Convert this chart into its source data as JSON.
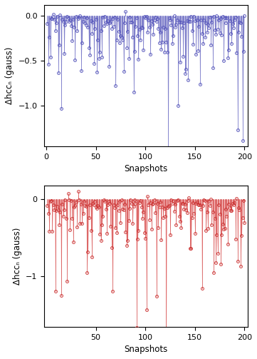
{
  "n": 200,
  "blue_color": "#5555bb",
  "blue_fill": "#8888cc",
  "red_color": "#cc3333",
  "red_fill": "#ee7777",
  "ylabel_blue": "Δhccₙ (gauss)",
  "ylabel_red": "Δhccₙ (gauss)",
  "xlabel": "Snapshots",
  "blue_ylim": [
    -1.45,
    0.12
  ],
  "red_ylim": [
    -1.65,
    0.18
  ],
  "blue_yticks": [
    0,
    -0.5,
    -1.0
  ],
  "red_yticks": [
    0,
    -1.0
  ],
  "xticks_top": [
    0,
    50,
    100,
    150,
    200
  ],
  "xticks_bottom": [
    50,
    100,
    150,
    200
  ],
  "figsize": [
    3.61,
    5.03
  ],
  "dpi": 100,
  "fill_alpha": 0.45,
  "line_alpha": 0.75,
  "line_width": 0.6,
  "marker_size": 2.8,
  "marker_lw": 0.7
}
